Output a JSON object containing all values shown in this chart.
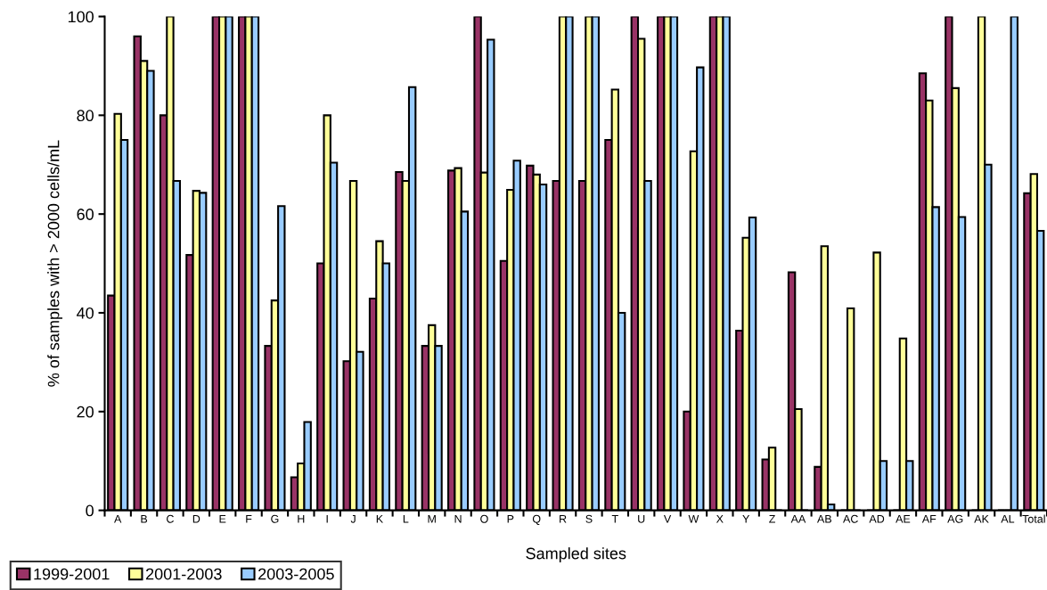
{
  "chart_data": {
    "type": "bar",
    "xlabel": "Sampled sites",
    "ylabel": "% of samples with > 2000 cells/mL",
    "categories": [
      "A",
      "B",
      "C",
      "D",
      "E",
      "F",
      "G",
      "H",
      "I",
      "J",
      "K",
      "L",
      "M",
      "N",
      "O",
      "P",
      "Q",
      "R",
      "S",
      "T",
      "U",
      "V",
      "W",
      "X",
      "Y",
      "Z",
      "AA",
      "AB",
      "AC",
      "AD",
      "AE",
      "AF",
      "AG",
      "AK",
      "AL",
      "Total"
    ],
    "series": [
      {
        "name": "1999-2001",
        "color": "#993366",
        "values": [
          43.5,
          96,
          80,
          51.7,
          100,
          100,
          33.3,
          6.7,
          50,
          30.2,
          42.9,
          68.5,
          33.3,
          68.8,
          100,
          50.5,
          69.8,
          66.7,
          66.7,
          75,
          100,
          100,
          20,
          100,
          36.4,
          10.3,
          48.2,
          8.8,
          0,
          0,
          0,
          88.5,
          100,
          0,
          0,
          64.2
        ]
      },
      {
        "name": "2001-2003",
        "color": "#ffff99",
        "values": [
          80.3,
          91,
          100,
          64.7,
          100,
          100,
          42.5,
          9.5,
          80,
          66.7,
          54.5,
          66.7,
          37.5,
          69.3,
          68.4,
          64.9,
          68,
          100,
          100,
          85.2,
          95.5,
          100,
          72.7,
          100,
          55.2,
          12.7,
          20.5,
          53.5,
          40.9,
          52.2,
          34.8,
          83,
          85.5,
          100,
          0,
          68.1
        ]
      },
      {
        "name": "2003-2005",
        "color": "#99ccff",
        "values": [
          75,
          89,
          66.7,
          64.3,
          100,
          100,
          61.6,
          17.9,
          70.4,
          32.1,
          50,
          85.7,
          33.3,
          60.5,
          95.3,
          70.8,
          66,
          100,
          100,
          40,
          66.7,
          100,
          89.7,
          100,
          59.3,
          0,
          0,
          1.2,
          0,
          10,
          10,
          61.4,
          59.4,
          70,
          100,
          56.6
        ]
      }
    ],
    "ylim": [
      0,
      100
    ],
    "yticks": [
      0,
      20,
      40,
      60,
      80,
      100
    ],
    "grid": false,
    "legend": "bottom left"
  }
}
